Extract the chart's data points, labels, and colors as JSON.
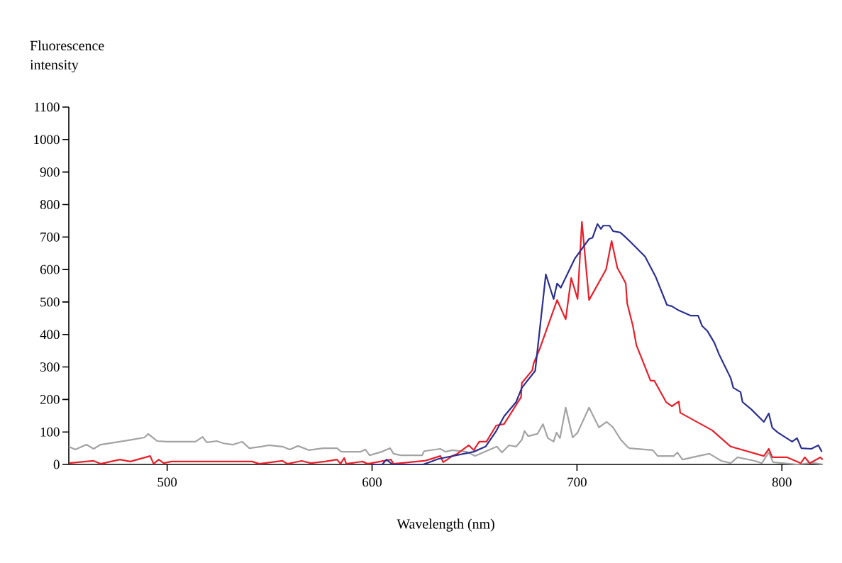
{
  "chart_data": {
    "type": "line",
    "xlabel": "Wavelength (nm)",
    "ylabel": "Fluorescence intensity",
    "xlim": [
      452,
      820
    ],
    "ylim": [
      0,
      1100
    ],
    "xticks": [
      500,
      600,
      700,
      800
    ],
    "yticks": [
      0,
      100,
      200,
      300,
      400,
      500,
      600,
      700,
      800,
      900,
      1000,
      1100
    ],
    "series": [
      {
        "color": "#a3a3a3",
        "x": [
          452,
          455.1,
          460.6,
          464.1,
          467.5,
          476.9,
          482.7,
          488.9,
          490.7,
          495.2,
          500,
          506.9,
          513.8,
          517.3,
          519.3,
          524.2,
          527.6,
          532.1,
          536.6,
          540.1,
          545.9,
          549.4,
          556.3,
          559.8,
          563.9,
          569.1,
          576.0,
          582.9,
          585.0,
          594.3,
          596.7,
          598.8,
          604.7,
          608.8,
          610.5,
          614.0,
          624.4,
          625.4,
          633.3,
          635.8,
          639.2,
          646.1,
          650.3,
          660.9,
          663.4,
          666.8,
          670.3,
          673.1,
          674.4,
          676.2,
          680.7,
          683.4,
          685.8,
          688.6,
          690.0,
          691.7,
          694.5,
          697.9,
          700.3,
          705.9,
          710.7,
          714.5,
          717.6,
          721.4,
          724.5,
          725.6,
          737.0,
          739.4,
          747.3,
          749.0,
          751.5,
          760.8,
          764.6,
          770.5,
          775.0,
          778.4,
          786.7,
          790.2,
          793.6,
          795.7,
          807.4,
          815,
          820
        ],
        "values": [
          55,
          46,
          61,
          48,
          61,
          70,
          76,
          83,
          94,
          72,
          70,
          70,
          70,
          85,
          68,
          72,
          65,
          61,
          70,
          50,
          55,
          59,
          55,
          46,
          57,
          44,
          50,
          50,
          39,
          39,
          46,
          28,
          39,
          50,
          33,
          28,
          28,
          41,
          48,
          39,
          44,
          39,
          26,
          55,
          37,
          59,
          55,
          76,
          103,
          87,
          94,
          124,
          81,
          70,
          98,
          81,
          175,
          83,
          98,
          175,
          114,
          131,
          114,
          76,
          55,
          50,
          44,
          26,
          26,
          37,
          15,
          28,
          33,
          11,
          4,
          22,
          11,
          4,
          37,
          7,
          0,
          5,
          0
        ]
      },
      {
        "color": "#e8202a",
        "x": [
          452,
          464.1,
          467.5,
          476.9,
          482.0,
          491.7,
          493.4,
          495.9,
          498.3,
          502.1,
          541.5,
          544.9,
          556.3,
          558.7,
          565.6,
          570.1,
          577.0,
          582.9,
          584.6,
          586.4,
          587.4,
          595.3,
          597.8,
          609.2,
          610.5,
          625.4,
          627.8,
          633.3,
          634.7,
          639.2,
          641.6,
          647.2,
          649.6,
          652.3,
          655.8,
          660.6,
          664.4,
          672.7,
          673.1,
          678.2,
          678.9,
          681.7,
          690.3,
          694.5,
          697.2,
          700.3,
          702.4,
          705.9,
          714.2,
          716.9,
          719.7,
          722.1,
          723.8,
          724.5,
          727.3,
          729.0,
          735.9,
          737.7,
          743.5,
          746.3,
          749.7,
          750.4,
          766.0,
          775.0,
          791.2,
          793.6,
          795.3,
          802.6,
          809.2,
          811.2,
          813.6,
          818.8,
          819.9
        ],
        "values": [
          4,
          11,
          2,
          15,
          9,
          26,
          2,
          15,
          4,
          9,
          9,
          2,
          11,
          2,
          11,
          4,
          9,
          15,
          2,
          20,
          2,
          9,
          2,
          15,
          2,
          11,
          15,
          26,
          7,
          26,
          33,
          59,
          44,
          70,
          70,
          120,
          124,
          207,
          251,
          290,
          312,
          354,
          506,
          447,
          574,
          509,
          747,
          506,
          600,
          688,
          605,
          578,
          557,
          496,
          426,
          367,
          258,
          258,
          192,
          179,
          194,
          159,
          105,
          55,
          26,
          48,
          22,
          22,
          4,
          22,
          4,
          22,
          15
        ]
      },
      {
        "color": "#2b2f8f",
        "x": [
          600,
          605,
          607,
          610,
          625,
          632.3,
          649.6,
          655.4,
          660.6,
          664.4,
          670.3,
          673.1,
          679.6,
          684.8,
          688.6,
          690.3,
          692.1,
          698.9,
          705.9,
          707.6,
          710.0,
          711.7,
          712.8,
          715.9,
          717.6,
          721.1,
          723.1,
          725.6,
          733.2,
          738.3,
          743.9,
          746.3,
          749.7,
          755.6,
          759.1,
          761.1,
          763.6,
          767.0,
          769.4,
          775.0,
          776.3,
          779.8,
          780.8,
          785.0,
          791.2,
          793.6,
          795.3,
          798.1,
          805.0,
          807.4,
          809.5,
          814.3,
          817.8,
          819.5
        ],
        "values": [
          0,
          0,
          15,
          0,
          0,
          17,
          39,
          55,
          103,
          148,
          192,
          236,
          288,
          585,
          509,
          557,
          544,
          633,
          694,
          698,
          740,
          725,
          735,
          735,
          718,
          714,
          703,
          688,
          640,
          579,
          491,
          487,
          474,
          458,
          458,
          426,
          411,
          375,
          338,
          266,
          236,
          223,
          192,
          170,
          131,
          157,
          113,
          98,
          70,
          81,
          50,
          48,
          59,
          39
        ]
      }
    ]
  }
}
